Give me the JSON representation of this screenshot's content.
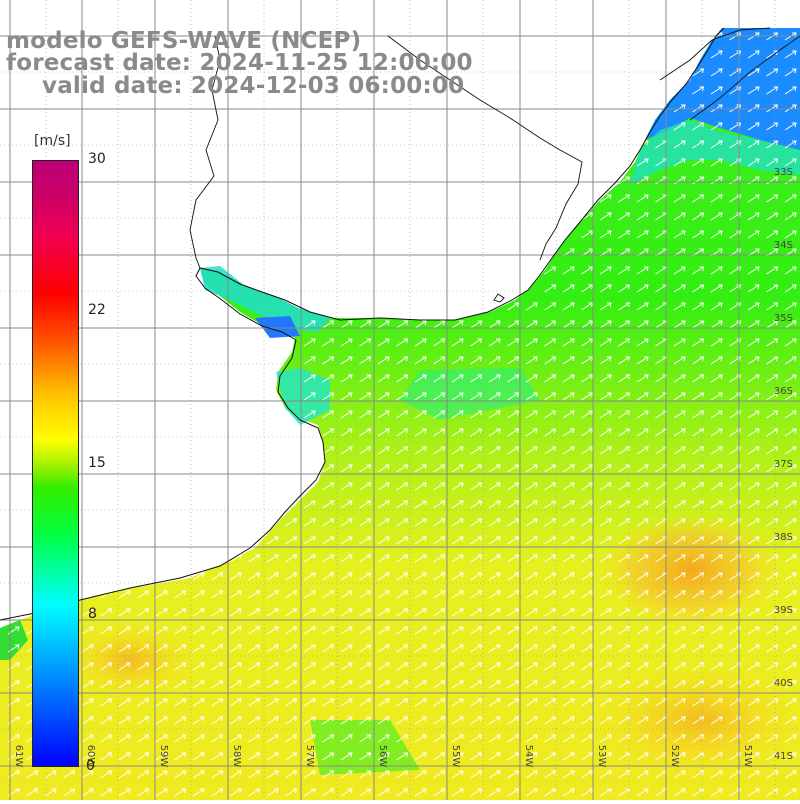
{
  "title": {
    "line1": "modelo GEFS-WAVE (NCEP)",
    "line2": "forecast date: 2024-11-25 12:00:00",
    "line3": "valid date: 2024-12-03 06:00:00"
  },
  "colorbar": {
    "unit": "[m/s]",
    "ticks": [
      "30",
      "22",
      "15",
      "8",
      "0"
    ],
    "min": 0,
    "max": 30,
    "colors": [
      "#0000ff",
      "#00ffff",
      "#00ff44",
      "#ffff00",
      "#ff0000",
      "#bb0077"
    ]
  },
  "map": {
    "lon_labels": [
      "61W",
      "60W",
      "59W",
      "58W",
      "57W",
      "56W",
      "55W",
      "54W",
      "53W",
      "52W",
      "51W"
    ],
    "lat_labels": [
      "33S",
      "34S",
      "35S",
      "36S",
      "37S",
      "38S",
      "39S",
      "40S",
      "41S"
    ],
    "land_color": "#ffffff",
    "grid_color": "#888888",
    "field": "wind speed",
    "arrow_direction": "toward northeast"
  }
}
